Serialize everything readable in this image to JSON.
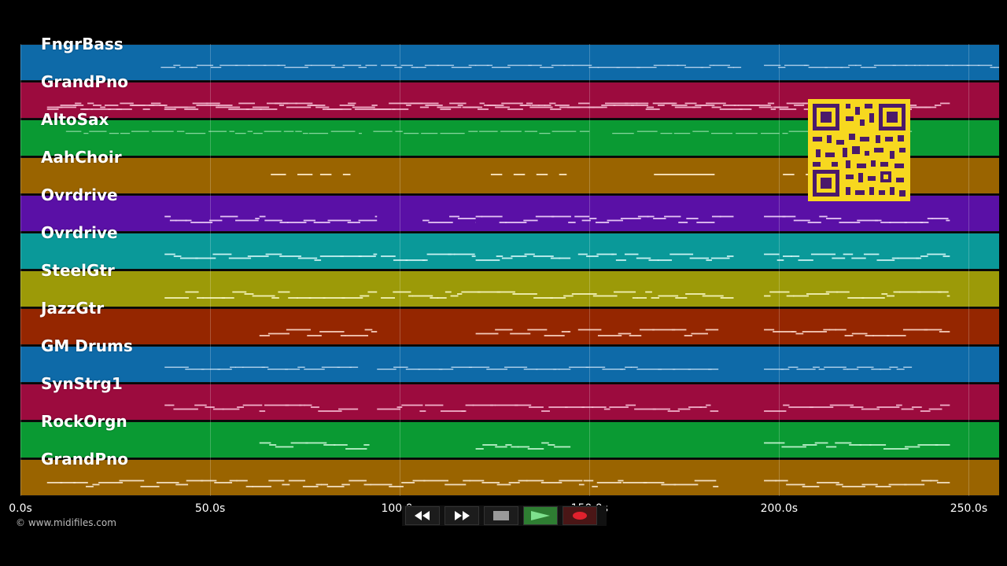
{
  "copyright": "© www.midifiles.com",
  "timeline": {
    "max_seconds": 258,
    "ticks": [
      {
        "label": "0.0s",
        "value": 0
      },
      {
        "label": "50.0s",
        "value": 50
      },
      {
        "label": "100.0s",
        "value": 100
      },
      {
        "label": "150.0s",
        "value": 150
      },
      {
        "label": "200.0s",
        "value": 200
      },
      {
        "label": "250.0s",
        "value": 250
      }
    ]
  },
  "tracks": [
    {
      "name": "FngrBass",
      "color": "#0e6aa8",
      "note_color": "#cfe3f5",
      "segments": [
        [
          37,
          94
        ],
        [
          95,
          190
        ],
        [
          196,
          258
        ]
      ],
      "style": "thin"
    },
    {
      "name": "GrandPno",
      "color": "#9c0b3e",
      "note_color": "#f3b8cf",
      "segments": [
        [
          7,
          240
        ],
        [
          7,
          245
        ]
      ],
      "style": "thick"
    },
    {
      "name": "AltoSax",
      "color": "#0a9a33",
      "note_color": "#b9efc8",
      "segments": [
        [
          12,
          90
        ],
        [
          93,
          150
        ],
        [
          156,
          235
        ]
      ],
      "style": "sparse"
    },
    {
      "name": "AahChoir",
      "color": "#9a6400",
      "note_color": "#f3dcb1",
      "segments": [
        [
          66,
          70
        ],
        [
          73,
          77
        ],
        [
          79,
          82
        ],
        [
          85,
          87
        ],
        [
          124,
          127
        ],
        [
          130,
          133
        ],
        [
          136,
          139
        ],
        [
          142,
          144
        ],
        [
          167,
          183
        ],
        [
          201,
          204
        ],
        [
          207,
          210
        ],
        [
          213,
          215
        ]
      ],
      "style": "dash"
    },
    {
      "name": "Ovrdrive",
      "color": "#5a10a6",
      "note_color": "#eccff7",
      "segments": [
        [
          38,
          63
        ],
        [
          63,
          94
        ],
        [
          106,
          120
        ],
        [
          120,
          150
        ],
        [
          148,
          188
        ],
        [
          196,
          245
        ]
      ],
      "style": "thick"
    },
    {
      "name": "Ovrdrive",
      "color": "#0a9999",
      "note_color": "#d2f4f4",
      "segments": [
        [
          38,
          94
        ],
        [
          95,
          120
        ],
        [
          120,
          145
        ],
        [
          147,
          188
        ],
        [
          196,
          245
        ]
      ],
      "style": "thick"
    },
    {
      "name": "SteelGtr",
      "color": "#9c9a08",
      "note_color": "#f7f5c0",
      "segments": [
        [
          38,
          94
        ],
        [
          95,
          188
        ],
        [
          196,
          245
        ]
      ],
      "style": "thick"
    },
    {
      "name": "JazzGtr",
      "color": "#952600",
      "note_color": "#f8d2c2",
      "segments": [
        [
          63,
          94
        ],
        [
          120,
          145
        ],
        [
          147,
          184
        ],
        [
          196,
          245
        ]
      ],
      "style": "thick"
    },
    {
      "name": "GM Drums",
      "color": "#0e6aa8",
      "note_color": "#d9ebfa",
      "segments": [
        [
          38,
          89
        ],
        [
          94,
          184
        ],
        [
          196,
          235
        ]
      ],
      "style": "thin"
    },
    {
      "name": "SynStrg1",
      "color": "#9c0b3e",
      "note_color": "#f3b8cf",
      "segments": [
        [
          38,
          89
        ],
        [
          94,
          184
        ],
        [
          196,
          245
        ]
      ],
      "style": "thick"
    },
    {
      "name": "RockOrgn",
      "color": "#0a9a33",
      "note_color": "#c5f3d2",
      "segments": [
        [
          63,
          92
        ],
        [
          120,
          145
        ],
        [
          196,
          245
        ]
      ],
      "style": "thick"
    },
    {
      "name": "GrandPno",
      "color": "#9a6400",
      "note_color": "#f6e4c9",
      "segments": [
        [
          7,
          184
        ],
        [
          196,
          245
        ]
      ],
      "style": "thick"
    }
  ],
  "transport": {
    "rewind": "rewind-icon",
    "fast_forward": "fast-forward-icon",
    "stop": "stop-icon",
    "play": "play-icon",
    "record": "record-icon"
  }
}
